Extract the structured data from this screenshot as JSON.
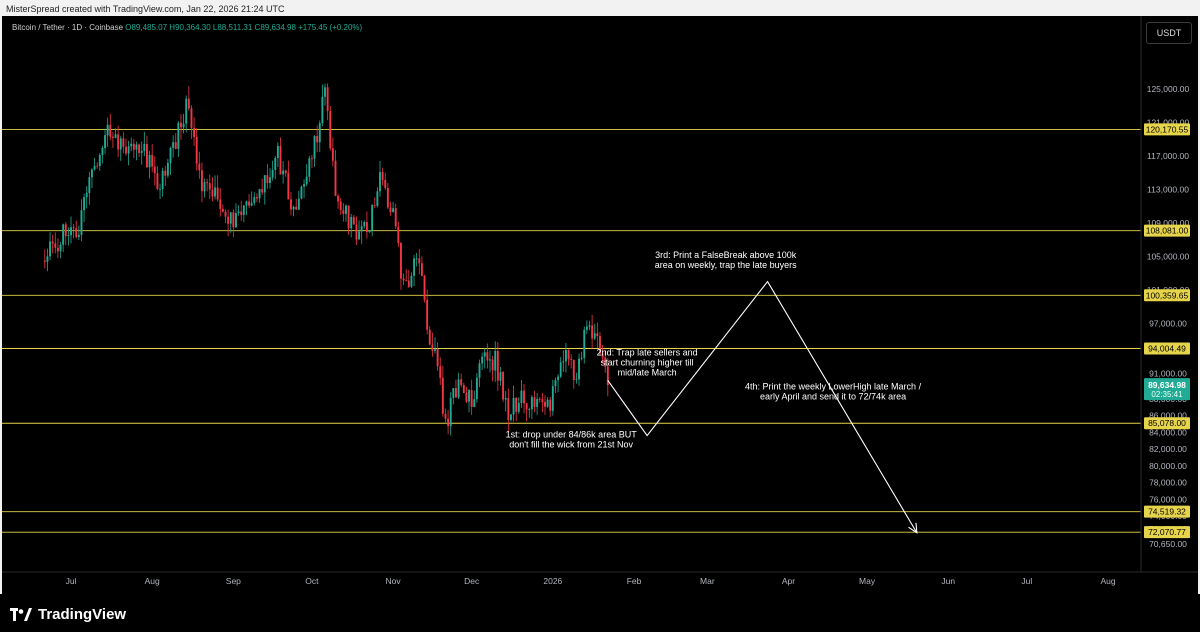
{
  "credit": "MisterSpread created with TradingView.com, Jan 22, 2026 21:24 UTC",
  "symbol": {
    "name": "Bitcoin / Tether · 1D · Coinbase",
    "ohlc": "O89,485.07 H90,364.30 L88,511.31 C89,634.98 +175.45 (+0.20%)"
  },
  "currency": "USDT",
  "brand": "TradingView",
  "colors": {
    "up": "#22ab94",
    "down": "#f23645",
    "level": "#e6d44a",
    "arrow": "#ffffff",
    "price_tag": "#22ab94"
  },
  "chart_data": {
    "type": "candlestick",
    "x_axis_labels": [
      "Jul",
      "Aug",
      "Sep",
      "Oct",
      "Nov",
      "Dec",
      "2026",
      "Feb",
      "Mar",
      "Apr",
      "May",
      "Jun",
      "Jul",
      "Aug"
    ],
    "x_axis_label_dates": [
      "2025-07-01",
      "2025-08-01",
      "2025-09-01",
      "2025-10-01",
      "2025-11-01",
      "2025-12-01",
      "2026-01-01",
      "2026-02-01",
      "2026-03-01",
      "2026-04-01",
      "2026-05-01",
      "2026-06-01",
      "2026-07-01",
      "2026-08-01"
    ],
    "y_ticks": [
      125000,
      121000,
      117000,
      113000,
      109000,
      105000,
      101000,
      97000,
      94000,
      91000,
      88000,
      86000,
      84000,
      82000,
      80000,
      78000,
      76000,
      74000,
      72450,
      70650
    ],
    "y_tick_labels": [
      "125,000.00",
      "121,000.00",
      "117,000.00",
      "113,000.00",
      "109,000.00",
      "105,000.00",
      "101,000.00",
      "97,000.00",
      "94,000.00",
      "91,000.00",
      "88,000.00",
      "86,000.00",
      "84,000.00",
      "82,000.00",
      "80,000.00",
      "78,000.00",
      "76,000.00",
      "74,000.00",
      "72,450.00",
      "70,650.00"
    ],
    "levels": [
      {
        "value": 120170.55,
        "label": "120,170.55"
      },
      {
        "value": 108081.0,
        "label": "108,081.00"
      },
      {
        "value": 100359.65,
        "label": "100,359.65"
      },
      {
        "value": 94004.49,
        "label": "94,004.49"
      },
      {
        "value": 85078.0,
        "label": "85,078.00"
      },
      {
        "value": 74519.32,
        "label": "74,519.32"
      },
      {
        "value": 72070.77,
        "label": "72,070.77"
      }
    ],
    "current_price": {
      "value": 89634.98,
      "label": "89,634.98",
      "countdown": "02:35:41"
    },
    "candle_path": [
      [
        "2025-06-20",
        104500
      ],
      [
        "2025-06-28",
        107600
      ],
      [
        "2025-07-04",
        108300
      ],
      [
        "2025-07-10",
        116000
      ],
      [
        "2025-07-14",
        119800
      ],
      [
        "2025-07-22",
        117800
      ],
      [
        "2025-07-28",
        118500
      ],
      [
        "2025-08-03",
        113500
      ],
      [
        "2025-08-10",
        119000
      ],
      [
        "2025-08-14",
        123000
      ],
      [
        "2025-08-20",
        113500
      ],
      [
        "2025-08-28",
        111500
      ],
      [
        "2025-09-01",
        108800
      ],
      [
        "2025-09-10",
        112800
      ],
      [
        "2025-09-18",
        117000
      ],
      [
        "2025-09-25",
        109500
      ],
      [
        "2025-10-02",
        118500
      ],
      [
        "2025-10-06",
        124200
      ],
      [
        "2025-10-10",
        113000
      ],
      [
        "2025-10-16",
        108500
      ],
      [
        "2025-10-22",
        107800
      ],
      [
        "2025-10-27",
        115000
      ],
      [
        "2025-11-01",
        110000
      ],
      [
        "2025-11-05",
        101500
      ],
      [
        "2025-11-11",
        104500
      ],
      [
        "2025-11-14",
        96000
      ],
      [
        "2025-11-18",
        92000
      ],
      [
        "2025-11-21",
        84500
      ],
      [
        "2025-11-26",
        90500
      ],
      [
        "2025-12-02",
        86800
      ],
      [
        "2025-12-04",
        93000
      ],
      [
        "2025-12-10",
        92500
      ],
      [
        "2025-12-15",
        86500
      ],
      [
        "2025-12-20",
        88000
      ],
      [
        "2025-12-25",
        87500
      ],
      [
        "2025-12-31",
        87800
      ],
      [
        "2026-01-05",
        93500
      ],
      [
        "2026-01-10",
        90500
      ],
      [
        "2026-01-14",
        96500
      ],
      [
        "2026-01-18",
        95000
      ],
      [
        "2026-01-22",
        89634.98
      ]
    ],
    "annotations": [
      {
        "id": "first",
        "lines": [
          "1st: drop under 84/86k area BUT",
          "don't fill the wick from 21st Nov"
        ],
        "at": [
          "2026-01-08",
          83400
        ]
      },
      {
        "id": "second",
        "lines": [
          "2nd: Trap late sellers and",
          "start churning higher till",
          "mid/late March"
        ],
        "at": [
          "2026-02-06",
          93150
        ]
      },
      {
        "id": "third",
        "lines": [
          "3rd: Print a FalseBreak above 100k",
          "area on weekly, trap the late buyers"
        ],
        "at": [
          "2026-03-08",
          104800
        ]
      },
      {
        "id": "fourth",
        "lines": [
          "4th: Print the weekly LowerHigh late March /",
          "early April and send it to 72/74k area"
        ],
        "at": [
          "2026-04-18",
          89100
        ]
      }
    ],
    "projection_path": [
      [
        "2026-01-22",
        90200
      ],
      [
        "2026-02-06",
        83600
      ],
      [
        "2026-03-24",
        102000
      ],
      [
        "2026-05-20",
        72000
      ]
    ]
  }
}
